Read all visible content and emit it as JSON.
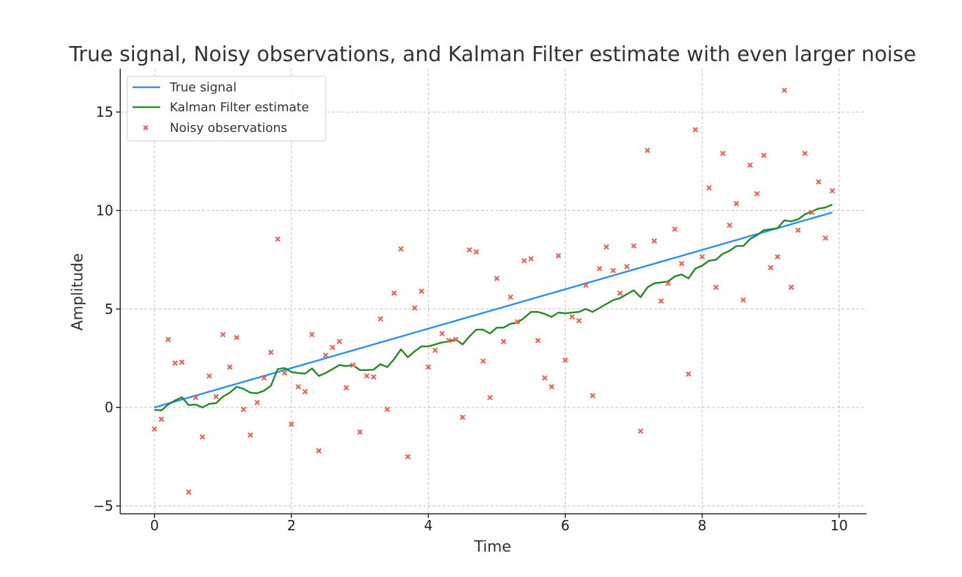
{
  "chart_data": {
    "type": "line",
    "title": "True signal, Noisy observations, and Kalman Filter estimate with even larger noise",
    "xlabel": "Time",
    "ylabel": "Amplitude",
    "xlim": [
      -0.5,
      10.4
    ],
    "ylim": [
      -5.4,
      17.2
    ],
    "xticks": [
      0,
      2,
      4,
      6,
      8,
      10
    ],
    "yticks": [
      -5,
      0,
      5,
      10,
      15
    ],
    "xtick_labels": [
      "0",
      "2",
      "4",
      "6",
      "8",
      "10"
    ],
    "ytick_labels": [
      "−5",
      "0",
      "5",
      "10",
      "15"
    ],
    "grid": true,
    "legend_position": "top-left",
    "legend": [
      {
        "label": "True signal",
        "kind": "line",
        "color": "#2b8ff0"
      },
      {
        "label": "Kalman Filter estimate",
        "kind": "line",
        "color": "#228b22"
      },
      {
        "label": "Noisy observations",
        "kind": "marker",
        "color": "#f06050"
      }
    ],
    "x": [
      0.0,
      0.1,
      0.2,
      0.3,
      0.4,
      0.5,
      0.6,
      0.7,
      0.8,
      0.9,
      1.0,
      1.1,
      1.2,
      1.3,
      1.4,
      1.5,
      1.6,
      1.7,
      1.8,
      1.9,
      2.0,
      2.1,
      2.2,
      2.3,
      2.4,
      2.5,
      2.6,
      2.7,
      2.8,
      2.9,
      3.0,
      3.1,
      3.2,
      3.3,
      3.4,
      3.5,
      3.6,
      3.7,
      3.8,
      3.9,
      4.0,
      4.1,
      4.2,
      4.3,
      4.4,
      4.5,
      4.6,
      4.7,
      4.8,
      4.9,
      5.0,
      5.1,
      5.2,
      5.3,
      5.4,
      5.5,
      5.6,
      5.7,
      5.8,
      5.9,
      6.0,
      6.1,
      6.2,
      6.3,
      6.4,
      6.5,
      6.6,
      6.7,
      6.8,
      6.9,
      7.0,
      7.1,
      7.2,
      7.3,
      7.4,
      7.5,
      7.6,
      7.7,
      7.8,
      7.9,
      8.0,
      8.1,
      8.2,
      8.3,
      8.4,
      8.5,
      8.6,
      8.7,
      8.8,
      8.9,
      9.0,
      9.1,
      9.2,
      9.3,
      9.4,
      9.5,
      9.6,
      9.7,
      9.8,
      9.9
    ],
    "series": [
      {
        "name": "True signal",
        "color": "#2b8ff0",
        "values": [
          0.0,
          0.1,
          0.2,
          0.3,
          0.4,
          0.5,
          0.6,
          0.7,
          0.8,
          0.9,
          1.0,
          1.1,
          1.2,
          1.3,
          1.4,
          1.5,
          1.6,
          1.7,
          1.8,
          1.9,
          2.0,
          2.1,
          2.2,
          2.3,
          2.4,
          2.5,
          2.6,
          2.7,
          2.8,
          2.9,
          3.0,
          3.1,
          3.2,
          3.3,
          3.4,
          3.5,
          3.6,
          3.7,
          3.8,
          3.9,
          4.0,
          4.1,
          4.2,
          4.3,
          4.4,
          4.5,
          4.6,
          4.7,
          4.8,
          4.9,
          5.0,
          5.1,
          5.2,
          5.3,
          5.4,
          5.5,
          5.6,
          5.7,
          5.8,
          5.9,
          6.0,
          6.1,
          6.2,
          6.3,
          6.4,
          6.5,
          6.6,
          6.7,
          6.8,
          6.9,
          7.0,
          7.1,
          7.2,
          7.3,
          7.4,
          7.5,
          7.6,
          7.7,
          7.8,
          7.9,
          8.0,
          8.1,
          8.2,
          8.3,
          8.4,
          8.5,
          8.6,
          8.7,
          8.8,
          8.9,
          9.0,
          9.1,
          9.2,
          9.3,
          9.4,
          9.5,
          9.6,
          9.7,
          9.8,
          9.9
        ]
      },
      {
        "name": "Kalman Filter estimate",
        "color": "#228b22",
        "values": [
          -0.12,
          -0.15,
          0.15,
          0.35,
          0.52,
          0.12,
          0.15,
          0.0,
          0.18,
          0.22,
          0.55,
          0.75,
          1.05,
          0.95,
          0.75,
          0.72,
          0.85,
          1.1,
          1.95,
          2.0,
          1.8,
          1.75,
          1.72,
          1.98,
          1.6,
          1.75,
          1.95,
          2.15,
          2.1,
          2.15,
          1.9,
          1.9,
          1.92,
          2.2,
          2.05,
          2.45,
          2.95,
          2.55,
          2.85,
          3.1,
          3.1,
          3.2,
          3.3,
          3.35,
          3.45,
          3.2,
          3.6,
          3.95,
          3.95,
          3.75,
          4.05,
          4.05,
          4.25,
          4.3,
          4.55,
          4.85,
          4.85,
          4.75,
          4.6,
          4.82,
          4.78,
          4.82,
          4.85,
          5.0,
          4.85,
          5.05,
          5.25,
          5.45,
          5.55,
          5.75,
          5.95,
          5.6,
          6.1,
          6.3,
          6.35,
          6.4,
          6.65,
          6.75,
          6.55,
          7.05,
          7.2,
          7.45,
          7.5,
          7.8,
          7.95,
          8.2,
          8.2,
          8.55,
          8.75,
          9.0,
          9.05,
          9.1,
          9.5,
          9.45,
          9.55,
          9.8,
          9.95,
          10.1,
          10.15,
          10.3
        ]
      },
      {
        "name": "Noisy observations",
        "color": "#f06050",
        "marker": "x",
        "values": [
          -1.1,
          -0.6,
          3.45,
          2.25,
          2.3,
          -4.3,
          0.5,
          -1.5,
          1.6,
          0.55,
          3.7,
          2.05,
          3.55,
          -0.1,
          -1.4,
          0.25,
          1.5,
          2.8,
          8.55,
          1.75,
          -0.85,
          1.05,
          0.8,
          3.7,
          -2.2,
          2.65,
          3.05,
          3.35,
          1.0,
          2.15,
          -1.25,
          1.6,
          1.55,
          4.5,
          -0.1,
          5.8,
          8.05,
          -2.5,
          5.05,
          5.9,
          2.05,
          2.9,
          3.75,
          3.4,
          3.45,
          -0.5,
          8.0,
          7.9,
          2.35,
          0.5,
          6.55,
          3.35,
          5.6,
          4.35,
          7.45,
          7.55,
          3.4,
          1.5,
          1.05,
          7.7,
          2.4,
          4.6,
          4.4,
          6.2,
          0.6,
          7.05,
          8.15,
          6.95,
          5.8,
          7.15,
          8.2,
          -1.2,
          13.05,
          8.45,
          5.4,
          6.3,
          9.05,
          7.3,
          1.7,
          14.1,
          7.65,
          11.15,
          6.1,
          12.9,
          9.25,
          10.35,
          5.45,
          12.3,
          10.85,
          12.8,
          7.1,
          7.65,
          16.1,
          6.1,
          9.0,
          12.9,
          9.9,
          11.45,
          8.6,
          11.0
        ]
      }
    ]
  }
}
